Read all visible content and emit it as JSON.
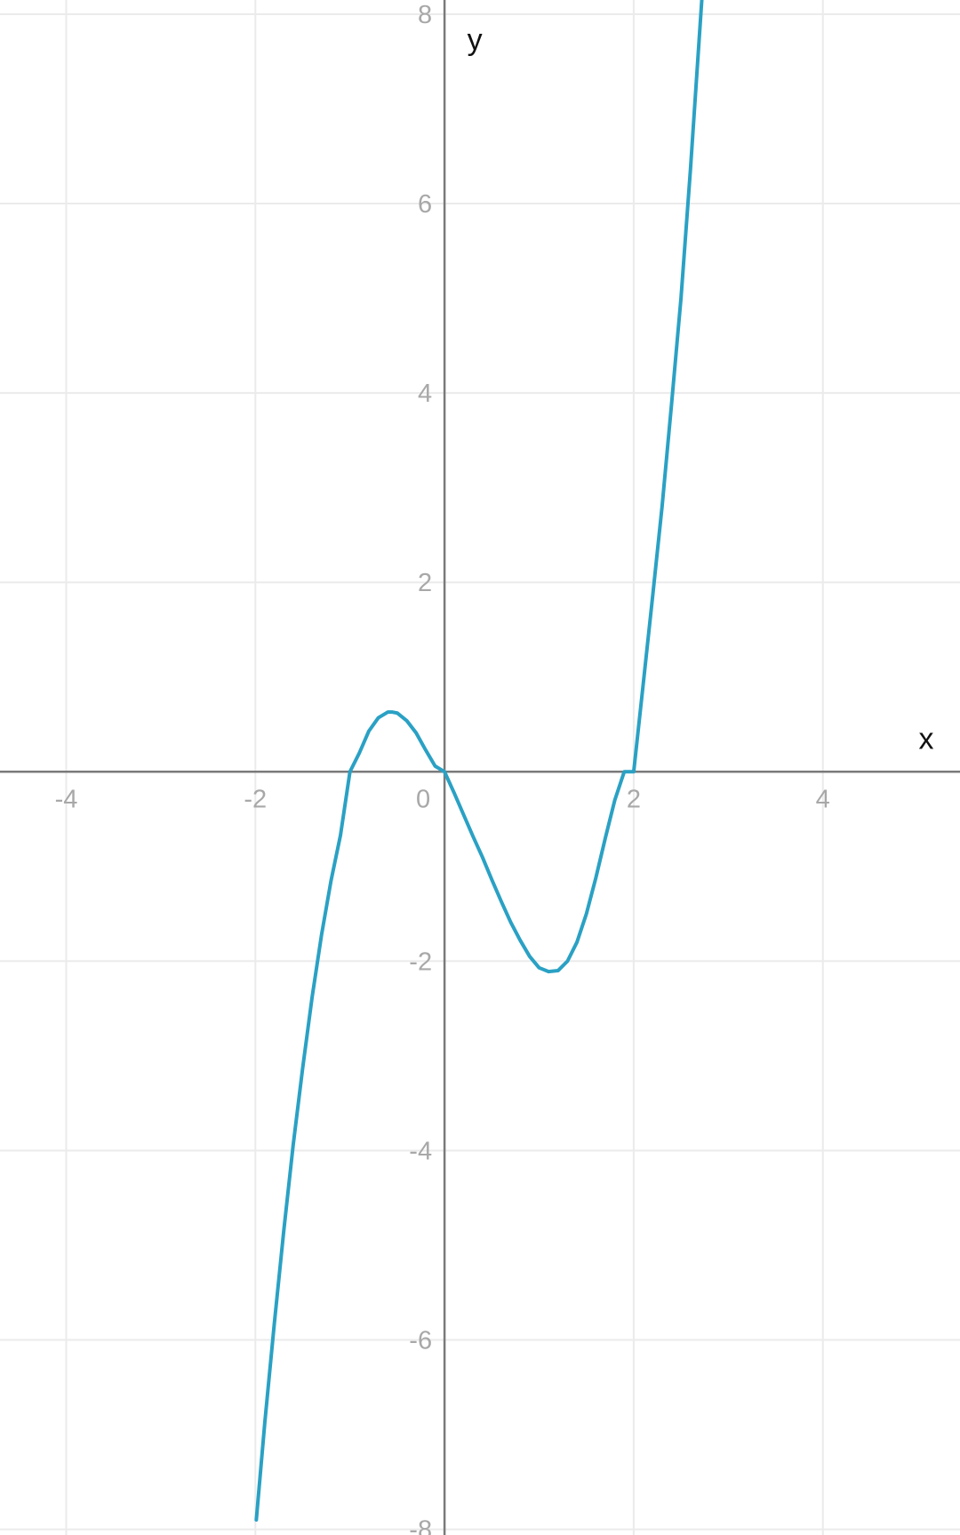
{
  "chart_data": {
    "type": "line",
    "title": "",
    "xlabel": "x",
    "ylabel": "y",
    "xlim": [
      -4.7,
      5.45
    ],
    "ylim": [
      -8.06,
      8.15
    ],
    "grid": true,
    "x_ticks": [
      -4,
      -2,
      0,
      2,
      4
    ],
    "y_ticks": [
      -8,
      -6,
      -4,
      -2,
      2,
      4,
      6,
      8
    ],
    "x_tick_labels": [
      "-4",
      "-2",
      "0",
      "2",
      "4"
    ],
    "y_tick_labels": [
      "-8",
      "-6",
      "-4",
      "-2",
      "2",
      "4",
      "6",
      "8"
    ],
    "series": [
      {
        "color": "#2aa1c4",
        "x": [
          -1.99,
          -1.9,
          -1.8,
          -1.7,
          -1.6,
          -1.5,
          -1.4,
          -1.3,
          -1.2,
          -1.1,
          -1.0,
          -0.9,
          -0.8,
          -0.7,
          -0.6,
          -0.55,
          -0.5,
          -0.4,
          -0.3,
          -0.2,
          -0.1,
          0.0,
          0.1,
          0.2,
          0.3,
          0.4,
          0.5,
          0.6,
          0.7,
          0.8,
          0.9,
          1.0,
          1.1,
          1.2,
          1.3,
          1.4,
          1.5,
          1.6,
          1.7,
          1.8,
          1.9,
          2.0,
          2.1,
          2.2,
          2.3,
          2.4,
          2.5,
          2.6,
          2.72
        ],
        "y": [
          -7.9,
          -6.87,
          -5.83,
          -4.85,
          -3.94,
          -3.13,
          -2.38,
          -1.72,
          -1.15,
          -0.67,
          -0.0,
          0.2,
          0.43,
          0.57,
          0.63,
          0.63,
          0.62,
          0.54,
          0.41,
          0.23,
          0.06,
          0.0,
          -0.22,
          -0.45,
          -0.68,
          -0.9,
          -1.14,
          -1.37,
          -1.59,
          -1.78,
          -1.95,
          -2.07,
          -2.11,
          -2.1,
          -2.0,
          -1.8,
          -1.5,
          -1.12,
          -0.7,
          -0.3,
          0.0,
          0.0,
          0.92,
          1.85,
          2.8,
          3.88,
          5.0,
          6.36,
          8.15
        ]
      }
    ]
  }
}
